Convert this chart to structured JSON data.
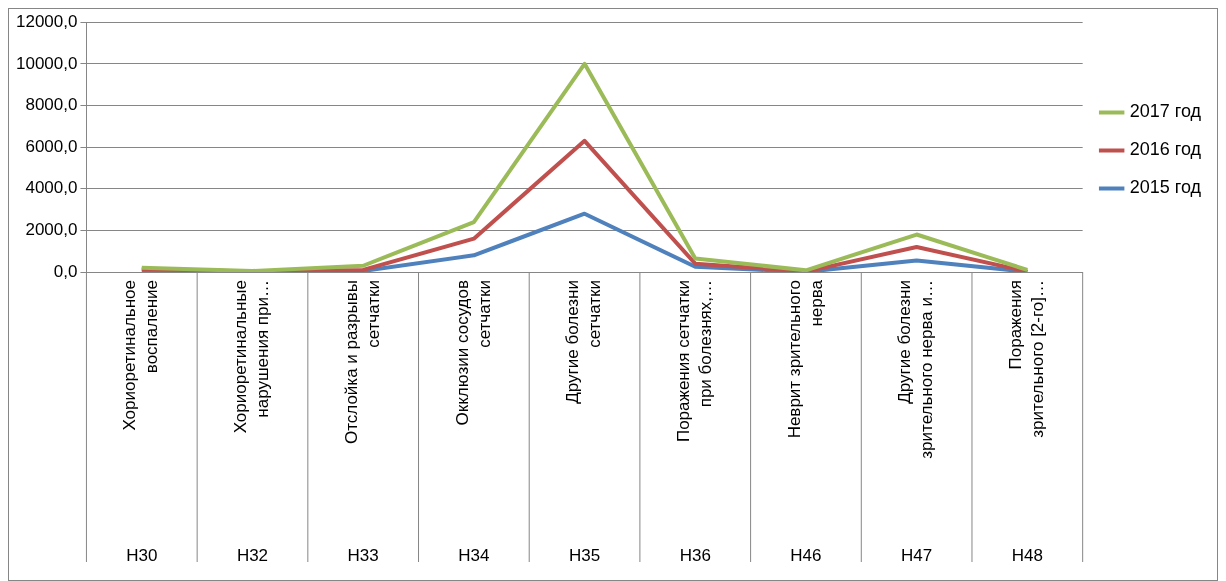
{
  "chart_data": {
    "type": "line",
    "categories": [
      "Хориоретинальное воспаление",
      "Хориоретинальные нарушения при…",
      "Отслойка и разрывы сетчатки",
      "Окклюзии сосудов сетчатки",
      "Другие болезни сетчатки",
      "Поражения сетчатки при болезнях,…",
      "Неврит зрительного нерва",
      "Другие болезни зрительного нерва и…",
      "Поражения зрительного [2-го]…"
    ],
    "series": [
      {
        "name": "2017 год",
        "color": "#9bbb59",
        "values": [
          200,
          50,
          300,
          2400,
          10000,
          650,
          80,
          1800,
          100
        ]
      },
      {
        "name": "2016 год",
        "color": "#c0504d",
        "values": [
          150,
          30,
          100,
          1600,
          6300,
          400,
          20,
          1200,
          20
        ]
      },
      {
        "name": "2015 год",
        "color": "#4f81bd",
        "values": [
          100,
          20,
          50,
          800,
          2800,
          250,
          10,
          550,
          10
        ]
      }
    ],
    "ylim": [
      0,
      12000
    ],
    "yticks": [
      {
        "value": 0,
        "label": "0,0"
      },
      {
        "value": 2000,
        "label": "2000,0"
      },
      {
        "value": 4000,
        "label": "4000,0"
      },
      {
        "value": 6000,
        "label": "6000,0"
      },
      {
        "value": 8000,
        "label": "8000,0"
      },
      {
        "value": 10000,
        "label": "10000,0"
      },
      {
        "value": 12000,
        "label": "12000,0"
      }
    ],
    "grid": "y",
    "legend": "right",
    "marker": "none",
    "line_style": "solid",
    "annotations": [
      "H30",
      "H32",
      "H33",
      "H34",
      "H35",
      "H36",
      "H46",
      "H47",
      "H48"
    ]
  }
}
